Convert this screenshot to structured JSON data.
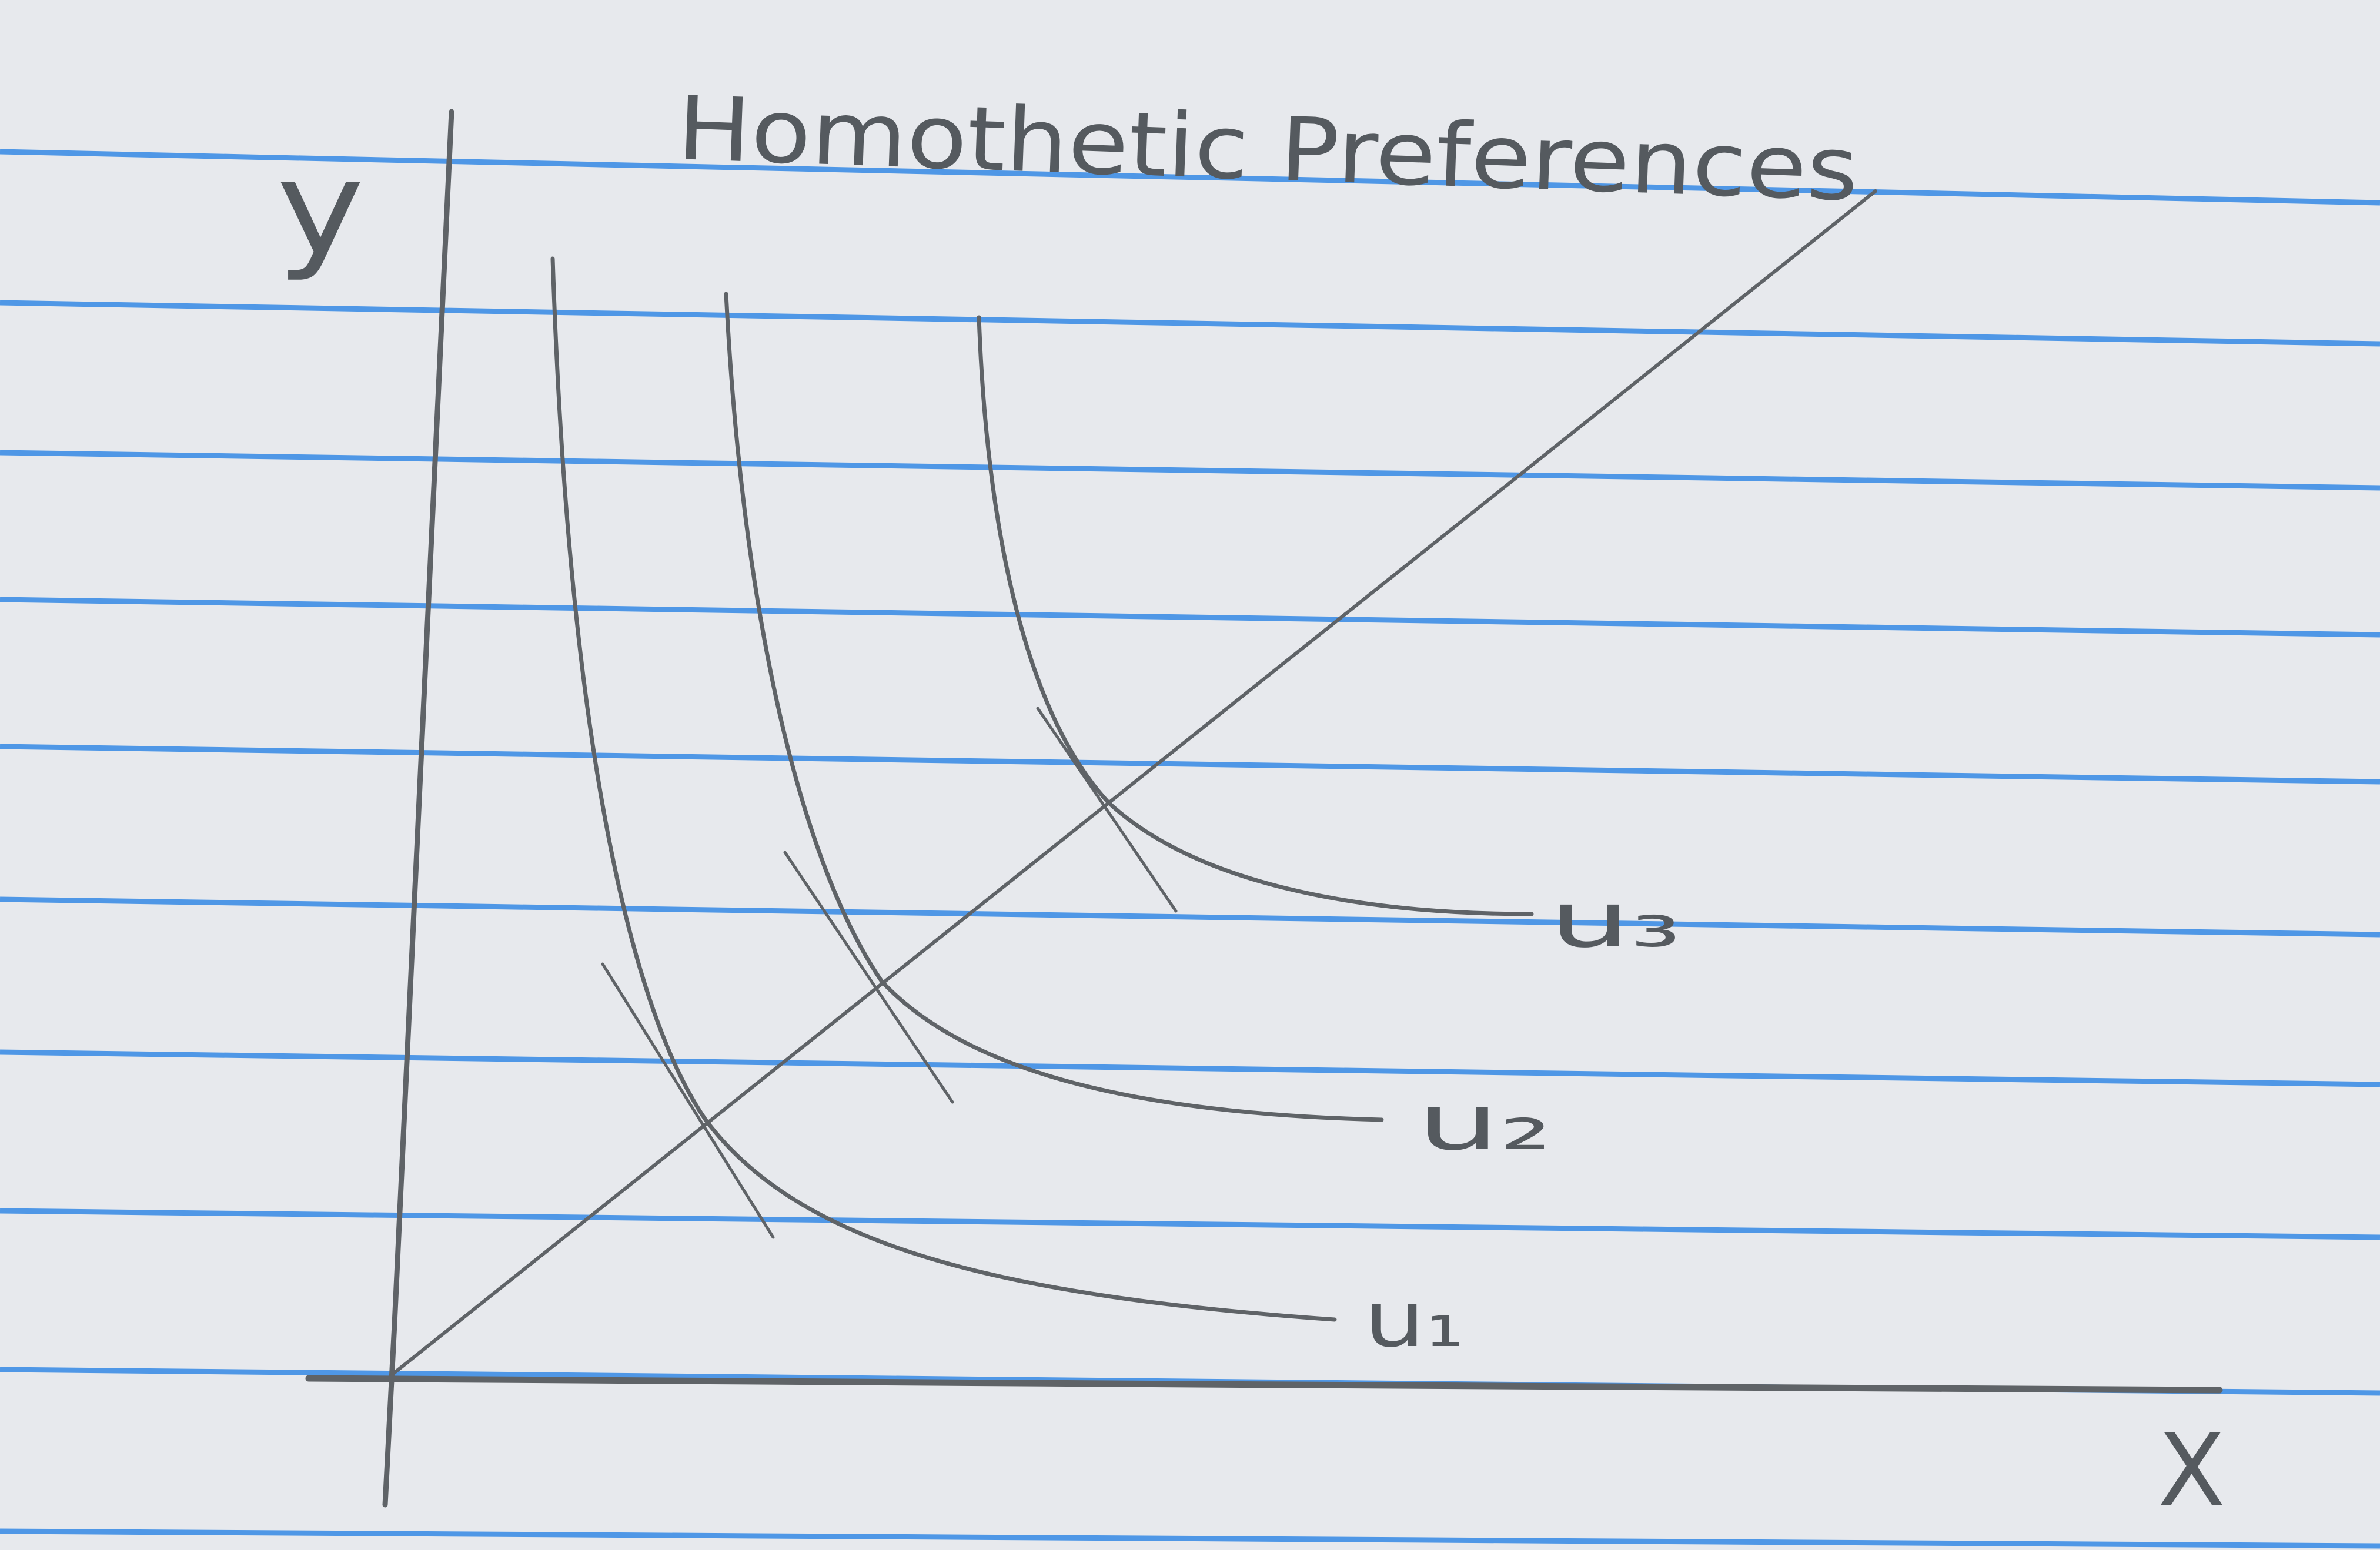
{
  "title": "Homothetic Preferences",
  "axes": {
    "y_label": "y",
    "x_label": "X"
  },
  "curves": [
    {
      "label": "u₁"
    },
    {
      "label": "u₂"
    },
    {
      "label": "u₃"
    }
  ],
  "colors": {
    "paper": "#e9ecef",
    "ruled_line": "#3f8fe6",
    "pencil": "#5f6367"
  }
}
